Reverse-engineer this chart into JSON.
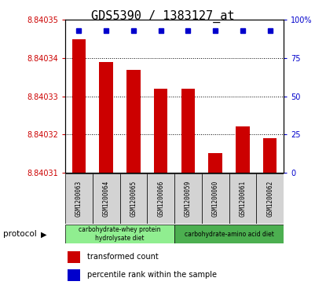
{
  "title": "GDS5390 / 1383127_at",
  "samples": [
    "GSM1200063",
    "GSM1200064",
    "GSM1200065",
    "GSM1200066",
    "GSM1200059",
    "GSM1200060",
    "GSM1200061",
    "GSM1200062"
  ],
  "red_values": [
    8.840345,
    8.840339,
    8.840337,
    8.840332,
    8.840332,
    8.840315,
    8.840322,
    8.840319
  ],
  "blue_values": [
    93,
    93,
    93,
    93,
    93,
    93,
    93,
    93
  ],
  "ylim_left": [
    8.84031,
    8.84035
  ],
  "ylim_right": [
    0,
    100
  ],
  "yticks_left": [
    8.84031,
    8.84032,
    8.84033,
    8.84034,
    8.84035
  ],
  "yticks_right": [
    0,
    25,
    50,
    75,
    100
  ],
  "protocol_groups": [
    {
      "label": "carbohydrate-whey protein\nhydrolysate diet",
      "samples_idx": [
        0,
        1,
        2,
        3
      ],
      "color": "#90ee90"
    },
    {
      "label": "carbohydrate-amino acid diet",
      "samples_idx": [
        4,
        5,
        6,
        7
      ],
      "color": "#4caf50"
    }
  ],
  "bar_color": "#cc0000",
  "dot_color": "#0000cc",
  "title_fontsize": 11,
  "axis_label_color_left": "#cc0000",
  "axis_label_color_right": "#0000cc",
  "sample_box_color": "#d3d3d3",
  "bar_width": 0.5
}
